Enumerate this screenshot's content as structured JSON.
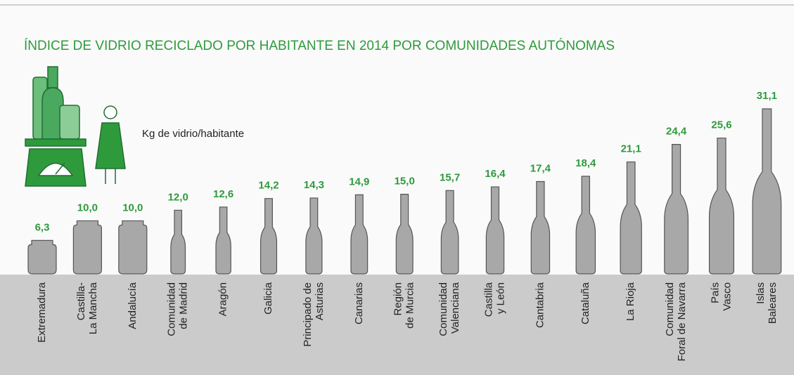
{
  "chart_data": {
    "type": "bar",
    "title": "ÍNDICE DE VIDRIO RECICLADO POR HABITANTE EN 2014 POR COMUNIDADES AUTÓNOMAS",
    "unit_label": "Kg de vidrio/habitante",
    "categories": [
      "Extremadura",
      "Castilla-\nLa Mancha",
      "Andalucía",
      "Comunidad\nde Madrid",
      "Aragón",
      "Galicia",
      "Principado de\nAsturias",
      "Canarias",
      "Región\nde Murcia",
      "Comunidad\nValenciana",
      "Castilla\ny León",
      "Cantabria",
      "Cataluña",
      "La Rioja",
      "Comunidad\nForal de Navarra",
      "País\nVasco",
      "Islas\nBaleares"
    ],
    "values": [
      6.3,
      10.0,
      10.0,
      12.0,
      12.6,
      14.2,
      14.3,
      14.9,
      15.0,
      15.7,
      16.4,
      17.4,
      18.4,
      21.1,
      24.4,
      25.6,
      31.1
    ],
    "value_labels": [
      "6,3",
      "10,0",
      "10,0",
      "12,0",
      "12,6",
      "14,2",
      "14,3",
      "14,9",
      "15,0",
      "15,7",
      "16,4",
      "17,4",
      "18,4",
      "21,1",
      "24,4",
      "25,6",
      "31,1"
    ],
    "color": "#a8a8a8",
    "label_color": "#2e9a3c"
  }
}
